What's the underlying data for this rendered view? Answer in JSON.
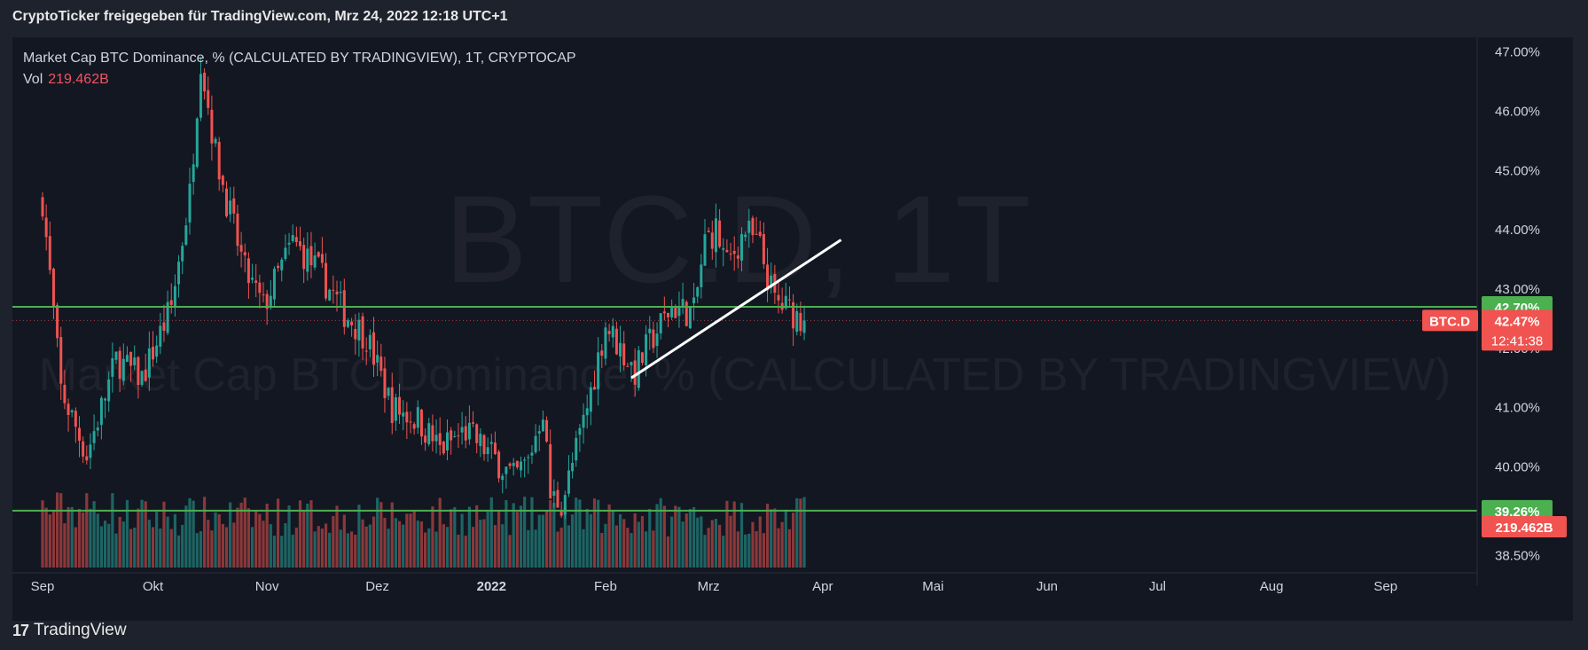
{
  "header": {
    "title": "CryptoTicker freigegeben für TradingView.com, Mrz 24, 2022 12:18 UTC+1"
  },
  "legend": {
    "line1": "Market Cap BTC Dominance, % (CALCULATED BY TRADINGVIEW), 1T, CRYPTOCAP",
    "vol_label": "Vol",
    "vol_value": "219.462B"
  },
  "watermark": {
    "big": "BTC.D, 1T",
    "small": "Market Cap BTC Dominance, % (CALCULATED BY TRADINGVIEW)"
  },
  "footer": {
    "brand": "TradingView",
    "logo": "17"
  },
  "colors": {
    "up": "#26a69a",
    "down": "#ef5350",
    "level": "#4caf50",
    "bg": "#131722"
  },
  "chart_data": {
    "type": "candlestick",
    "symbol": "BTC.D",
    "interval": "1T",
    "ylim": [
      38.3,
      47.25
    ],
    "y_ticks": [
      "47.00%",
      "46.00%",
      "45.00%",
      "44.00%",
      "43.00%",
      "42.00%",
      "41.00%",
      "40.00%",
      "38.50%"
    ],
    "y_tick_values": [
      47.0,
      46.0,
      45.0,
      44.0,
      43.0,
      42.0,
      41.0,
      40.0,
      38.5
    ],
    "x_ticks": [
      "Sep",
      "Okt",
      "Nov",
      "Dez",
      "2022",
      "Feb",
      "Mrz",
      "Apr",
      "Mai",
      "Jun",
      "Jul",
      "Aug",
      "Sep"
    ],
    "x_tick_days": [
      0,
      30,
      61,
      91,
      122,
      153,
      181,
      212,
      242,
      273,
      303,
      334,
      365
    ],
    "anchors_day": [
      0,
      5,
      12,
      20,
      27,
      35,
      40,
      43,
      47,
      50,
      55,
      60,
      68,
      75,
      82,
      88,
      95,
      102,
      108,
      115,
      122,
      128,
      132,
      136,
      138,
      141,
      143,
      148,
      153,
      158,
      161,
      165,
      171,
      177,
      180,
      183,
      186,
      191,
      195,
      197,
      199,
      204,
      207
    ],
    "anchors_close": [
      44.5,
      41.3,
      40.2,
      41.8,
      41.5,
      42.7,
      44.6,
      46.9,
      45.3,
      44.5,
      43.3,
      42.7,
      43.8,
      43.3,
      42.6,
      42.2,
      41.0,
      40.8,
      40.3,
      40.6,
      40.2,
      39.8,
      40.1,
      41.0,
      39.5,
      39.4,
      39.8,
      41.0,
      42.4,
      41.9,
      41.6,
      42.1,
      42.7,
      42.6,
      43.8,
      44.0,
      43.4,
      44.0,
      43.7,
      43.2,
      42.8,
      42.6,
      42.47
    ],
    "last_day": 207,
    "levels": [
      {
        "value": 42.7,
        "label": "42.70%"
      },
      {
        "value": 39.26,
        "label": "39.26%"
      }
    ],
    "current": {
      "symbol": "BTC.D",
      "value": 42.47,
      "label": "42.47%",
      "countdown": "12:41:38"
    },
    "volume_label": "219.462B",
    "trendline": {
      "day_start": 160,
      "value_start": 41.5,
      "day_end": 217,
      "value_end": 43.83
    }
  }
}
